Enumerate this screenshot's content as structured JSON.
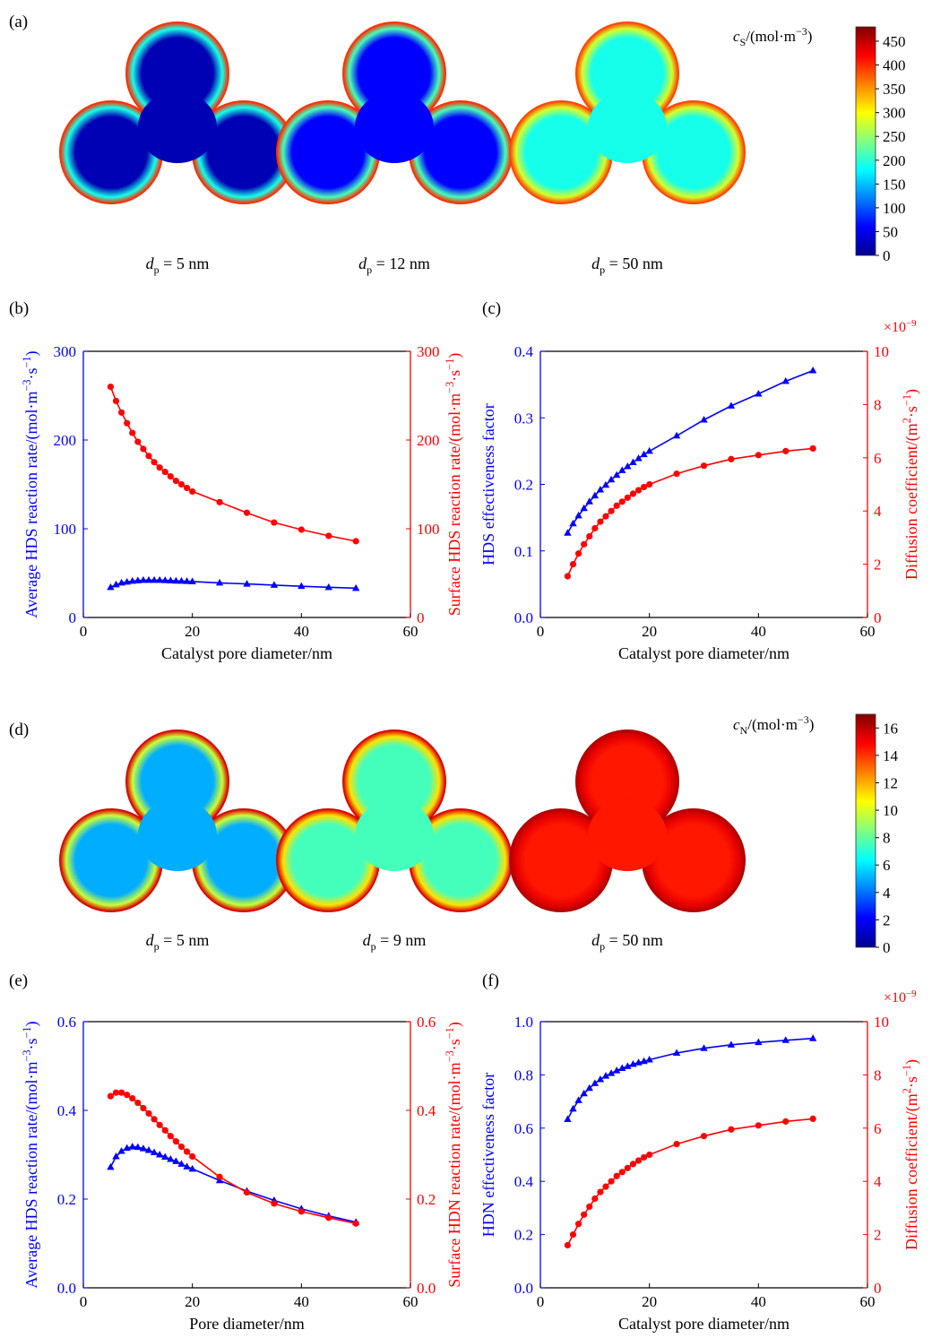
{
  "panel_a": {
    "label": "(a)",
    "colorbar_title": "c_S/(mol·m^−3)",
    "colorbar_ticks": [
      "0",
      "50",
      "100",
      "150",
      "200",
      "250",
      "300",
      "350",
      "400",
      "450"
    ],
    "colorbar_range": [
      0,
      480
    ],
    "colormap": [
      "#00008f",
      "#0000ff",
      "#0080ff",
      "#00ffff",
      "#80ff80",
      "#ffff00",
      "#ff8000",
      "#ff0000",
      "#800000"
    ],
    "shapes": [
      {
        "caption_var": "d",
        "caption_sub": "p",
        "caption_rest": " = 5 nm",
        "surface_value": 400,
        "center_value": 20
      },
      {
        "caption_var": "d",
        "caption_sub": "p",
        "caption_rest": " = 12 nm",
        "surface_value": 400,
        "center_value": 60
      },
      {
        "caption_var": "d",
        "caption_sub": "p",
        "caption_rest": " = 50 nm",
        "surface_value": 390,
        "center_value": 190
      }
    ]
  },
  "panel_d": {
    "label": "(d)",
    "colorbar_title": "c_N/(mol·m^−3)",
    "colorbar_ticks": [
      "0",
      "2",
      "4",
      "6",
      "8",
      "10",
      "12",
      "14",
      "16"
    ],
    "colorbar_range": [
      0,
      17
    ],
    "colormap": [
      "#00008f",
      "#0000ff",
      "#0080ff",
      "#00ffff",
      "#80ff80",
      "#ffff00",
      "#ff8000",
      "#ff0000",
      "#800000"
    ],
    "shapes": [
      {
        "caption_var": "d",
        "caption_sub": "p",
        "caption_rest": " = 5 nm",
        "surface_value": 15.5,
        "center_value": 5
      },
      {
        "caption_var": "d",
        "caption_sub": "p",
        "caption_rest": " = 9 nm",
        "surface_value": 15.5,
        "center_value": 7.5
      },
      {
        "caption_var": "d",
        "caption_sub": "p",
        "caption_rest": " = 50 nm",
        "surface_value": 16.2,
        "center_value": 14.5
      }
    ]
  },
  "chart_data": [
    {
      "panel": "(b)",
      "type": "line",
      "xlabel": "Catalyst pore diameter/nm",
      "xlim": [
        0,
        60
      ],
      "xticks": [
        "0",
        "20",
        "40",
        "60"
      ],
      "ylabel_left": "Average HDS reaction rate/(mol·m^−3·s^−1)",
      "ylim_left": [
        0,
        300
      ],
      "yticks_left": [
        "0",
        "100",
        "200",
        "300"
      ],
      "ylabel_right": "Surface HDS reaction rate/(mol·m^−3·s^−1)",
      "ylim_right": [
        0,
        300
      ],
      "yticks_right": [
        "0",
        "100",
        "200",
        "300"
      ],
      "series": [
        {
          "axis": "left",
          "color": "#0000ff",
          "marker": "triangle",
          "x": [
            5,
            6,
            7,
            8,
            9,
            10,
            11,
            12,
            13,
            14,
            15,
            16,
            17,
            18,
            19,
            20,
            25,
            30,
            35,
            40,
            45,
            50
          ],
          "y": [
            34,
            37,
            39,
            40,
            41,
            41.5,
            42,
            42,
            42,
            42,
            41.8,
            41.5,
            41.2,
            41,
            40.8,
            40.5,
            39,
            37.8,
            36.5,
            35.2,
            34,
            33
          ]
        },
        {
          "axis": "right",
          "color": "#ff0000",
          "marker": "circle",
          "x": [
            5,
            6,
            7,
            8,
            9,
            10,
            11,
            12,
            13,
            14,
            15,
            16,
            17,
            18,
            19,
            20,
            25,
            30,
            35,
            40,
            45,
            50
          ],
          "y": [
            260,
            244,
            231,
            219,
            208,
            198,
            190,
            182,
            175,
            169,
            164,
            159,
            154,
            150,
            146,
            142,
            130,
            118,
            107,
            99,
            92,
            86
          ]
        }
      ]
    },
    {
      "panel": "(c)",
      "type": "line",
      "xlabel": "Catalyst pore diameter/nm",
      "xlim": [
        0,
        60
      ],
      "xticks": [
        "0",
        "20",
        "40",
        "60"
      ],
      "ylabel_left": "HDS effectiveness factor",
      "ylim_left": [
        0,
        0.4
      ],
      "yticks_left": [
        "0.0",
        "0.1",
        "0.2",
        "0.3",
        "0.4"
      ],
      "ylabel_right": "Diffusion coefficient/(m^2·s^−1)",
      "ylim_right": [
        0,
        10
      ],
      "yticks_right": [
        "0",
        "2",
        "4",
        "6",
        "8",
        "10"
      ],
      "right_multiplier": "×10^−9",
      "series": [
        {
          "axis": "left",
          "color": "#0000ff",
          "marker": "triangle",
          "x": [
            5,
            6,
            7,
            8,
            9,
            10,
            11,
            12,
            13,
            14,
            15,
            16,
            17,
            18,
            19,
            20,
            25,
            30,
            35,
            40,
            45,
            50
          ],
          "y": [
            0.127,
            0.141,
            0.153,
            0.164,
            0.174,
            0.183,
            0.192,
            0.199,
            0.207,
            0.214,
            0.221,
            0.227,
            0.233,
            0.239,
            0.245,
            0.25,
            0.273,
            0.297,
            0.318,
            0.336,
            0.355,
            0.371
          ]
        },
        {
          "axis": "right",
          "color": "#ff0000",
          "marker": "circle",
          "x": [
            5,
            6,
            7,
            8,
            9,
            10,
            11,
            12,
            13,
            14,
            15,
            16,
            17,
            18,
            19,
            20,
            25,
            30,
            35,
            40,
            45,
            50
          ],
          "y": [
            1.55,
            2.0,
            2.4,
            2.75,
            3.05,
            3.35,
            3.6,
            3.8,
            4.0,
            4.2,
            4.35,
            4.5,
            4.65,
            4.78,
            4.9,
            5.0,
            5.4,
            5.7,
            5.95,
            6.1,
            6.25,
            6.35
          ]
        }
      ]
    },
    {
      "panel": "(e)",
      "type": "line",
      "xlabel": "Pore diameter/nm",
      "xlim": [
        0,
        60
      ],
      "xticks": [
        "0",
        "20",
        "40",
        "60"
      ],
      "ylabel_left": "Average HDS reaction rate/(mol·m^−3·s^−1)",
      "ylim_left": [
        0,
        0.6
      ],
      "yticks_left": [
        "0.0",
        "0.2",
        "0.4",
        "0.6"
      ],
      "ylabel_right": "Surface HDN reaction rate/(mol·m^−3·s^−1)",
      "ylim_right": [
        0,
        0.6
      ],
      "yticks_right": [
        "0.0",
        "0.2",
        "0.4",
        "0.6"
      ],
      "series": [
        {
          "axis": "left",
          "color": "#0000ff",
          "marker": "triangle",
          "x": [
            5,
            6,
            7,
            8,
            9,
            10,
            11,
            12,
            13,
            14,
            15,
            16,
            17,
            18,
            19,
            20,
            25,
            30,
            35,
            40,
            45,
            50
          ],
          "y": [
            0.272,
            0.296,
            0.308,
            0.315,
            0.318,
            0.317,
            0.314,
            0.31,
            0.305,
            0.3,
            0.295,
            0.29,
            0.285,
            0.279,
            0.273,
            0.268,
            0.242,
            0.218,
            0.197,
            0.178,
            0.162,
            0.148
          ]
        },
        {
          "axis": "right",
          "color": "#ff0000",
          "marker": "circle",
          "x": [
            5,
            6,
            7,
            8,
            9,
            10,
            11,
            12,
            13,
            14,
            15,
            16,
            17,
            18,
            19,
            20,
            25,
            30,
            35,
            40,
            45,
            50
          ],
          "y": [
            0.432,
            0.44,
            0.44,
            0.435,
            0.427,
            0.417,
            0.405,
            0.393,
            0.38,
            0.367,
            0.355,
            0.342,
            0.33,
            0.318,
            0.307,
            0.296,
            0.25,
            0.215,
            0.19,
            0.172,
            0.158,
            0.145
          ]
        }
      ]
    },
    {
      "panel": "(f)",
      "type": "line",
      "xlabel": "Catalyst pore diameter/nm",
      "xlim": [
        0,
        60
      ],
      "xticks": [
        "0",
        "20",
        "40",
        "60"
      ],
      "ylabel_left": "HDN effectiveness factor",
      "ylim_left": [
        0,
        1.0
      ],
      "yticks_left": [
        "0.0",
        "0.2",
        "0.4",
        "0.6",
        "0.8",
        "1.0"
      ],
      "ylabel_right": "Diffusion coefficient/(m^2·s^−1)",
      "ylim_right": [
        0,
        10
      ],
      "yticks_right": [
        "0",
        "2",
        "4",
        "6",
        "8",
        "10"
      ],
      "right_multiplier": "×10^−9",
      "series": [
        {
          "axis": "left",
          "color": "#0000ff",
          "marker": "triangle",
          "x": [
            5,
            6,
            7,
            8,
            9,
            10,
            11,
            12,
            13,
            14,
            15,
            16,
            17,
            18,
            19,
            20,
            25,
            30,
            35,
            40,
            45,
            50
          ],
          "y": [
            0.633,
            0.672,
            0.704,
            0.73,
            0.75,
            0.768,
            0.783,
            0.796,
            0.806,
            0.816,
            0.825,
            0.832,
            0.84,
            0.846,
            0.851,
            0.857,
            0.882,
            0.9,
            0.913,
            0.922,
            0.93,
            0.937
          ]
        },
        {
          "axis": "right",
          "color": "#ff0000",
          "marker": "circle",
          "x": [
            5,
            6,
            7,
            8,
            9,
            10,
            11,
            12,
            13,
            14,
            15,
            16,
            17,
            18,
            19,
            20,
            25,
            30,
            35,
            40,
            45,
            50
          ],
          "y": [
            1.6,
            2.0,
            2.4,
            2.75,
            3.05,
            3.35,
            3.6,
            3.8,
            4.0,
            4.2,
            4.35,
            4.5,
            4.65,
            4.78,
            4.9,
            5.0,
            5.4,
            5.7,
            5.95,
            6.1,
            6.25,
            6.35
          ]
        }
      ]
    }
  ]
}
